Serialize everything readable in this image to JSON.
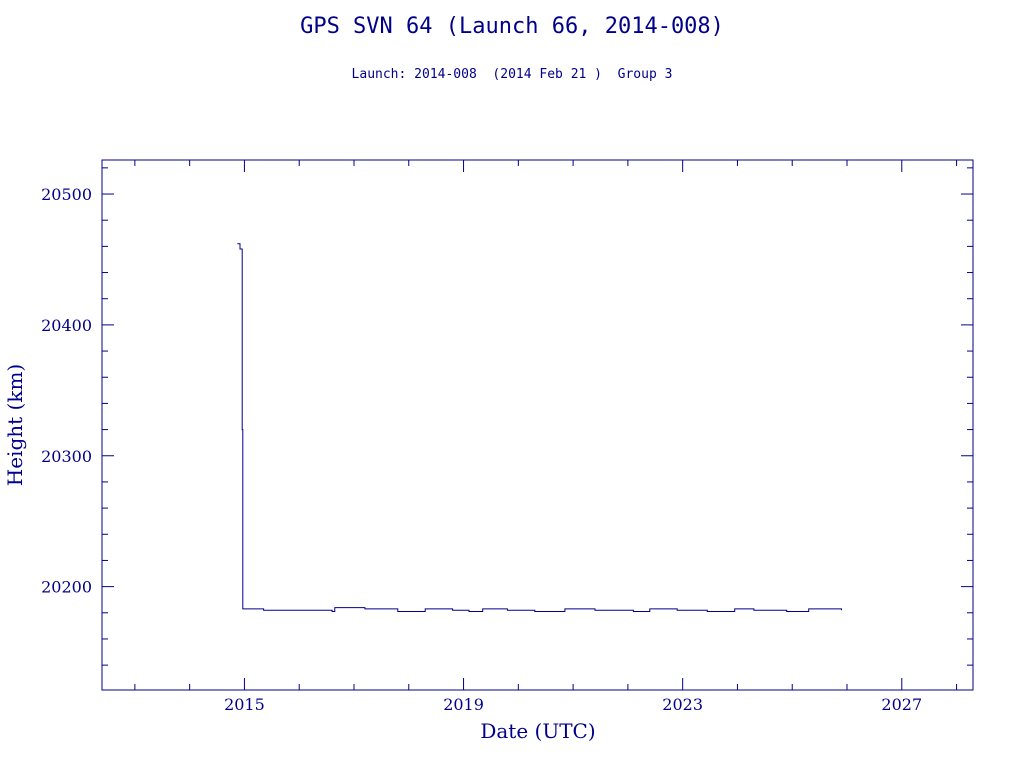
{
  "title": "GPS SVN 64 (Launch 66, 2014-008)",
  "subtitle": "Launch: 2014-008  (2014 Feb 21 )  Group 3",
  "chart_data": {
    "type": "line",
    "xlabel": "Date (UTC)",
    "ylabel": "Height (km)",
    "xlim": [
      2012.4,
      2028.3
    ],
    "ylim": [
      20121,
      20526
    ],
    "x_ticks": [
      2015,
      2019,
      2023,
      2027
    ],
    "y_ticks": [
      20200,
      20300,
      20400,
      20500
    ],
    "x_tick_labels": [
      "2015",
      "2019",
      "2023",
      "2027"
    ],
    "y_tick_labels": [
      "20200",
      "20300",
      "20400",
      "20500"
    ],
    "grid": false,
    "series": [
      {
        "color": "#00008b",
        "x": [
          2014.87,
          2014.91,
          2014.92,
          2014.95,
          2014.96,
          2014.97,
          2015.3,
          2015.35,
          2015.9,
          2016.2,
          2016.6,
          2016.65,
          2017.2,
          2017.8,
          2018.3,
          2018.8,
          2019.1,
          2019.35,
          2019.8,
          2020.3,
          2020.8,
          2020.85,
          2021.4,
          2022.1,
          2022.4,
          2022.9,
          2023.45,
          2023.95,
          2024.3,
          2024.9,
          2025.3,
          2025.45,
          2025.9
        ],
        "y": [
          20462,
          20462,
          20458,
          20458,
          20320,
          20183,
          20183,
          20182,
          20182,
          20182,
          20181,
          20184,
          20183,
          20181,
          20183,
          20182,
          20181,
          20183,
          20182,
          20181,
          20181,
          20183,
          20182,
          20181,
          20183,
          20182,
          20181,
          20183,
          20182,
          20181,
          20183,
          20183,
          20182
        ]
      }
    ]
  }
}
